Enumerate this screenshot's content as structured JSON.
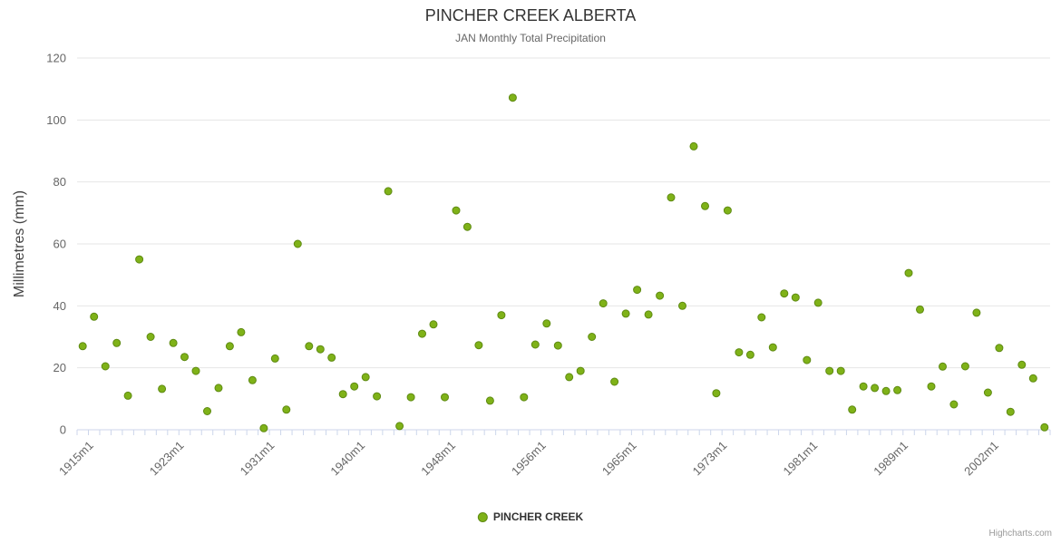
{
  "credits": {
    "label": "Highcharts.com"
  },
  "chart_data": {
    "type": "scatter",
    "title": "PINCHER CREEK ALBERTA",
    "subtitle": "JAN Monthly Total Precipitation",
    "ylabel": "Millimetres (mm)",
    "xlabel": "",
    "ylim": [
      0,
      120
    ],
    "yticks": [
      0,
      20,
      40,
      60,
      80,
      100,
      120
    ],
    "grid": true,
    "legend_position": "bottom",
    "x_tick_labels": [
      {
        "index": 1,
        "label": "1915m1"
      },
      {
        "index": 9,
        "label": "1923m1"
      },
      {
        "index": 17,
        "label": "1931m1"
      },
      {
        "index": 25,
        "label": "1940m1"
      },
      {
        "index": 33,
        "label": "1948m1"
      },
      {
        "index": 41,
        "label": "1956m1"
      },
      {
        "index": 49,
        "label": "1965m1"
      },
      {
        "index": 57,
        "label": "1973m1"
      },
      {
        "index": 65,
        "label": "1981m1"
      },
      {
        "index": 73,
        "label": "1989m1"
      },
      {
        "index": 81,
        "label": "2002m1"
      }
    ],
    "series": [
      {
        "name": "PINCHER CREEK",
        "marker": "circle",
        "values": [
          27,
          36.5,
          20.5,
          28,
          11,
          55,
          30,
          13.2,
          28,
          23.5,
          19,
          6,
          13.5,
          27,
          31.5,
          16,
          0.5,
          23,
          6.5,
          60,
          27,
          26,
          23.3,
          11.5,
          14,
          17,
          10.8,
          77,
          1.2,
          10.5,
          31,
          34,
          10.5,
          70.8,
          65.5,
          27.3,
          9.4,
          37,
          107.2,
          10.5,
          27.5,
          34.3,
          27.2,
          17,
          19,
          30,
          40.8,
          15.5,
          37.5,
          45.2,
          37.2,
          43.3,
          75,
          40,
          91.5,
          72.2,
          11.8,
          70.8,
          25,
          24.2,
          36.3,
          26.6,
          44,
          42.7,
          22.5,
          41,
          19,
          19,
          6.5,
          14,
          13.5,
          12.5,
          12.8,
          50.6,
          38.8,
          14,
          20.4,
          8.2,
          20.5,
          37.8,
          12,
          26.4,
          5.8,
          21,
          16.6,
          0.8
        ]
      }
    ],
    "colors": {
      "point_fill": "#7fb218",
      "point_stroke": "#5e8a12",
      "grid": "#e6e6e6",
      "axis_line": "#ccd6eb",
      "axis_label": "#666666",
      "y_title": "#444444",
      "title": "#333333",
      "subtitle": "#666666"
    }
  }
}
